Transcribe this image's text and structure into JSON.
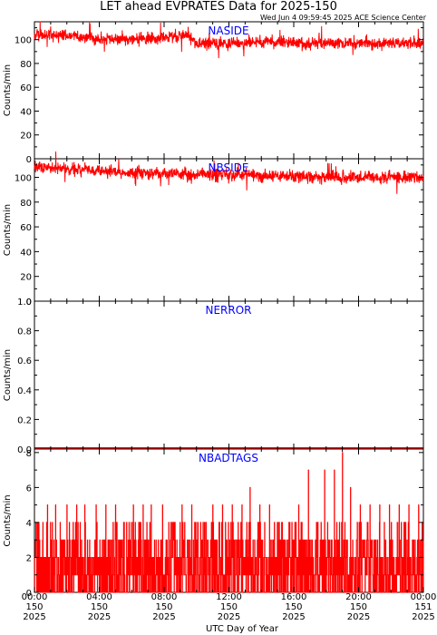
{
  "title": "LET ahead EVPRATES Data for 2025-150",
  "timestamp": "Wed Jun  4 09:59:45 2025 ACE Science Center",
  "x_axis_label": "UTC Day of Year",
  "x_ticks": [
    {
      "time": "00:00",
      "day": "150",
      "year": "2025"
    },
    {
      "time": "04:00",
      "day": "150",
      "year": "2025"
    },
    {
      "time": "08:00",
      "day": "150",
      "year": "2025"
    },
    {
      "time": "12:00",
      "day": "150",
      "year": "2025"
    },
    {
      "time": "16:00",
      "day": "150",
      "year": "2025"
    },
    {
      "time": "20:00",
      "day": "150",
      "year": "2025"
    },
    {
      "time": "00:00",
      "day": "151",
      "year": "2025"
    }
  ],
  "colors": {
    "data": "#ff0000",
    "panel_label": "#0000ff",
    "axes": "#000000"
  },
  "chart_data": [
    {
      "type": "line",
      "title": "NASIDE",
      "ylabel": "Counts/min",
      "xlim": [
        0,
        24
      ],
      "ylim": [
        0,
        115
      ],
      "yticks": [
        0,
        20,
        40,
        60,
        80,
        100
      ],
      "yticklabels": [
        "0",
        "20",
        "40",
        "60",
        "80",
        "100"
      ],
      "series": [
        {
          "x": [
            0,
            2,
            4,
            6,
            8,
            9.5,
            10,
            12,
            14,
            16,
            18,
            20,
            22,
            24
          ],
          "y": [
            104,
            103,
            101,
            100,
            102,
            104,
            97,
            97,
            98,
            97,
            97,
            97,
            97,
            97
          ]
        }
      ]
    },
    {
      "type": "line",
      "title": "NBSIDE",
      "ylabel": "Counts/min",
      "xlim": [
        0,
        24
      ],
      "ylim": [
        0,
        115
      ],
      "yticks": [
        0,
        20,
        40,
        60,
        80,
        100
      ],
      "yticklabels": [
        "0",
        "20",
        "40",
        "60",
        "80",
        "100"
      ],
      "series": [
        {
          "x": [
            0,
            2,
            4,
            6,
            8,
            10,
            12,
            14,
            16,
            18,
            20,
            22,
            24
          ],
          "y": [
            108,
            107,
            105,
            104,
            103,
            102,
            102,
            101,
            101,
            100,
            100,
            100,
            100
          ]
        }
      ]
    },
    {
      "type": "line",
      "title": "NERROR",
      "ylabel": "Counts/min",
      "xlim": [
        0,
        24
      ],
      "ylim": [
        0,
        1
      ],
      "yticks": [
        0,
        0.2,
        0.4,
        0.6,
        0.8,
        1.0
      ],
      "yticklabels": [
        "0.0",
        "0.2",
        "0.4",
        "0.6",
        "0.8",
        "1.0"
      ],
      "series": [
        {
          "x": [
            0,
            24
          ],
          "y": [
            0,
            0
          ]
        }
      ]
    },
    {
      "type": "line",
      "title": "NBADTAGS",
      "ylabel": "Counts/min",
      "xlim": [
        0,
        24
      ],
      "ylim": [
        0,
        8.2
      ],
      "yticks": [
        0,
        2,
        4,
        6,
        8
      ],
      "yticklabels": [
        "0",
        "2",
        "4",
        "6",
        "8"
      ],
      "series": [
        {
          "x": [
            0.2,
            0.8,
            1.3,
            2.0,
            2.6,
            3.1,
            3.8,
            4.4,
            5.0,
            5.5,
            6.1,
            6.7,
            7.2,
            7.9,
            8.5,
            9.1,
            9.7,
            10.4,
            11.0,
            11.6,
            12.2,
            12.8,
            13.3,
            13.9,
            14.5,
            15.1,
            15.7,
            16.3,
            16.9,
            17.4,
            17.9,
            18.5,
            19.0,
            19.5,
            20.1,
            20.7,
            21.3,
            21.9,
            22.5,
            23.1,
            23.7
          ],
          "y": [
            4,
            5,
            5,
            5,
            5,
            5,
            5,
            5,
            5,
            4,
            5,
            5,
            5,
            5,
            4,
            5,
            5,
            4,
            5,
            5,
            5,
            5,
            6,
            5,
            5,
            4,
            4,
            5,
            7,
            4,
            7,
            7,
            8,
            6,
            5,
            5,
            5,
            5,
            5,
            5,
            5
          ]
        }
      ]
    }
  ]
}
